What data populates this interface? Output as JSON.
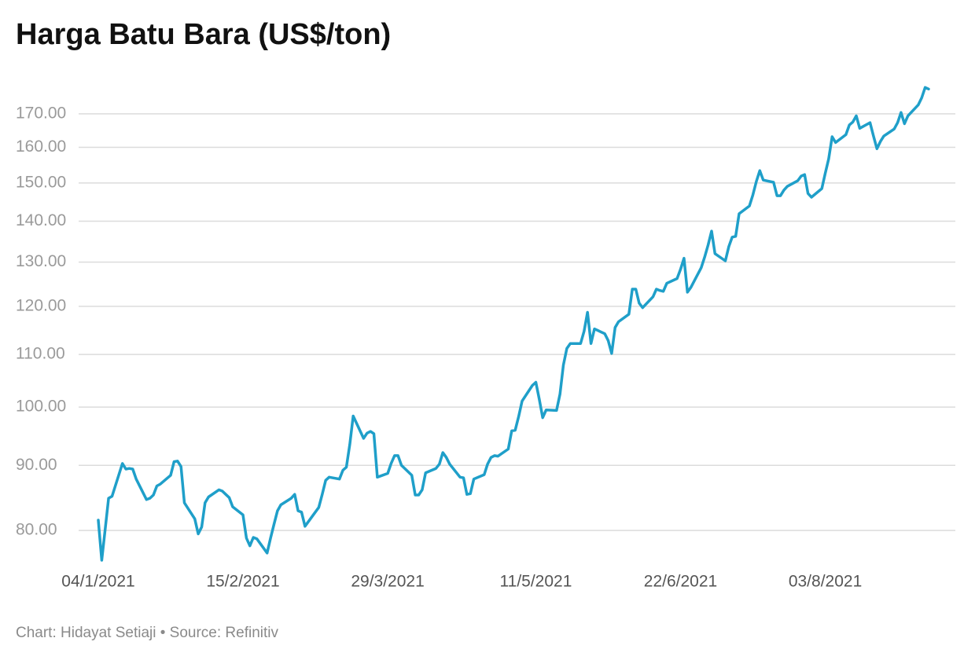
{
  "chart_data": {
    "type": "line",
    "title": "Harga Batu Bara (US$/ton)",
    "footer": "Chart: Hidayat Setiaji • Source: Refinitiv",
    "color": "#1f9fc9",
    "yscale": "log",
    "grid": true,
    "ylim": [
      75,
      185
    ],
    "yticks": [
      {
        "value": 80,
        "label": "80.00"
      },
      {
        "value": 90,
        "label": "90.00"
      },
      {
        "value": 100,
        "label": "100.00"
      },
      {
        "value": 110,
        "label": "110.00"
      },
      {
        "value": 120,
        "label": "120.00"
      },
      {
        "value": 130,
        "label": "130.00"
      },
      {
        "value": 140,
        "label": "140.00"
      },
      {
        "value": 150,
        "label": "150.00"
      },
      {
        "value": 160,
        "label": "160.00"
      },
      {
        "value": 170,
        "label": "170.00"
      }
    ],
    "xlim": [
      "2021-01-04",
      "2021-09-02"
    ],
    "xticks": [
      {
        "value": "2021-01-04",
        "label": "04/1/2021"
      },
      {
        "value": "2021-02-15",
        "label": "15/2/2021"
      },
      {
        "value": "2021-03-29",
        "label": "29/3/2021"
      },
      {
        "value": "2021-05-11",
        "label": "11/5/2021"
      },
      {
        "value": "2021-06-22",
        "label": "22/6/2021"
      },
      {
        "value": "2021-08-03",
        "label": "03/8/2021"
      }
    ],
    "x": [
      "2021-01-04",
      "2021-01-05",
      "2021-01-06",
      "2021-01-07",
      "2021-01-08",
      "2021-01-11",
      "2021-01-12",
      "2021-01-13",
      "2021-01-14",
      "2021-01-15",
      "2021-01-18",
      "2021-01-19",
      "2021-01-20",
      "2021-01-21",
      "2021-01-22",
      "2021-01-25",
      "2021-01-26",
      "2021-01-27",
      "2021-01-28",
      "2021-01-29",
      "2021-02-01",
      "2021-02-02",
      "2021-02-03",
      "2021-02-04",
      "2021-02-05",
      "2021-02-08",
      "2021-02-09",
      "2021-02-10",
      "2021-02-11",
      "2021-02-12",
      "2021-02-15",
      "2021-02-16",
      "2021-02-17",
      "2021-02-18",
      "2021-02-19",
      "2021-02-22",
      "2021-02-23",
      "2021-02-24",
      "2021-02-25",
      "2021-02-26",
      "2021-03-01",
      "2021-03-02",
      "2021-03-03",
      "2021-03-04",
      "2021-03-05",
      "2021-03-08",
      "2021-03-09",
      "2021-03-10",
      "2021-03-11",
      "2021-03-12",
      "2021-03-15",
      "2021-03-16",
      "2021-03-17",
      "2021-03-18",
      "2021-03-19",
      "2021-03-22",
      "2021-03-23",
      "2021-03-24",
      "2021-03-25",
      "2021-03-26",
      "2021-03-29",
      "2021-03-30",
      "2021-03-31",
      "2021-04-01",
      "2021-04-02",
      "2021-04-05",
      "2021-04-06",
      "2021-04-07",
      "2021-04-08",
      "2021-04-09",
      "2021-04-12",
      "2021-04-13",
      "2021-04-14",
      "2021-04-15",
      "2021-04-16",
      "2021-04-19",
      "2021-04-20",
      "2021-04-21",
      "2021-04-22",
      "2021-04-23",
      "2021-04-26",
      "2021-04-27",
      "2021-04-28",
      "2021-04-29",
      "2021-04-30",
      "2021-05-03",
      "2021-05-04",
      "2021-05-05",
      "2021-05-06",
      "2021-05-07",
      "2021-05-10",
      "2021-05-11",
      "2021-05-12",
      "2021-05-13",
      "2021-05-14",
      "2021-05-17",
      "2021-05-18",
      "2021-05-19",
      "2021-05-20",
      "2021-05-21",
      "2021-05-24",
      "2021-05-25",
      "2021-05-26",
      "2021-05-27",
      "2021-05-28",
      "2021-05-31",
      "2021-06-01",
      "2021-06-02",
      "2021-06-03",
      "2021-06-04",
      "2021-06-07",
      "2021-06-08",
      "2021-06-09",
      "2021-06-10",
      "2021-06-11",
      "2021-06-14",
      "2021-06-15",
      "2021-06-16",
      "2021-06-17",
      "2021-06-18",
      "2021-06-21",
      "2021-06-22",
      "2021-06-23",
      "2021-06-24",
      "2021-06-25",
      "2021-06-28",
      "2021-06-29",
      "2021-06-30",
      "2021-07-01",
      "2021-07-02",
      "2021-07-05",
      "2021-07-06",
      "2021-07-07",
      "2021-07-08",
      "2021-07-09",
      "2021-07-12",
      "2021-07-13",
      "2021-07-14",
      "2021-07-15",
      "2021-07-16",
      "2021-07-19",
      "2021-07-20",
      "2021-07-21",
      "2021-07-22",
      "2021-07-23",
      "2021-07-26",
      "2021-07-27",
      "2021-07-28",
      "2021-07-29",
      "2021-07-30",
      "2021-08-02",
      "2021-08-03",
      "2021-08-04",
      "2021-08-05",
      "2021-08-06",
      "2021-08-09",
      "2021-08-10",
      "2021-08-11",
      "2021-08-12",
      "2021-08-13",
      "2021-08-16",
      "2021-08-17",
      "2021-08-18",
      "2021-08-19",
      "2021-08-20",
      "2021-08-23",
      "2021-08-24",
      "2021-08-25",
      "2021-08-26",
      "2021-08-27",
      "2021-08-30",
      "2021-08-31",
      "2021-09-01",
      "2021-09-02"
    ],
    "values": [
      81.5,
      75.8,
      80.2,
      84.8,
      85.1,
      90.3,
      89.4,
      89.5,
      89.4,
      87.8,
      84.6,
      84.8,
      85.3,
      86.7,
      87.0,
      88.4,
      90.6,
      90.7,
      89.8,
      84.1,
      81.7,
      79.5,
      80.5,
      84.1,
      85.0,
      86.1,
      85.9,
      85.4,
      84.9,
      83.5,
      82.3,
      78.9,
      77.8,
      79.0,
      78.8,
      76.8,
      78.9,
      80.9,
      82.9,
      83.8,
      84.8,
      85.4,
      82.9,
      82.7,
      80.6,
      82.7,
      83.4,
      85.4,
      87.6,
      88.1,
      87.8,
      89.2,
      89.7,
      93.5,
      98.4,
      94.5,
      95.4,
      95.7,
      95.3,
      88.1,
      88.7,
      90.3,
      91.6,
      91.6,
      90.0,
      88.4,
      85.3,
      85.3,
      86.1,
      88.8,
      89.5,
      90.2,
      92.1,
      91.3,
      90.2,
      88.1,
      88.0,
      85.4,
      85.5,
      87.8,
      88.5,
      90.2,
      91.3,
      91.6,
      91.5,
      92.7,
      95.8,
      95.9,
      98.3,
      101.1,
      104.0,
      104.6,
      101.4,
      98.1,
      99.5,
      99.4,
      102.4,
      107.9,
      111.2,
      112.2,
      112.2,
      114.7,
      118.7,
      112.2,
      115.2,
      114.2,
      112.8,
      110.2,
      115.5,
      116.7,
      118.3,
      123.8,
      123.8,
      120.7,
      119.7,
      122.1,
      123.8,
      123.5,
      123.3,
      125.1,
      126.2,
      128.3,
      130.9,
      123.1,
      124.2,
      128.7,
      131.2,
      134.1,
      137.5,
      132.0,
      130.3,
      133.7,
      136.0,
      136.2,
      141.9,
      143.9,
      146.8,
      150.4,
      153.4,
      150.8,
      150.2,
      146.6,
      146.6,
      148.1,
      149.1,
      150.6,
      151.9,
      152.3,
      147.2,
      146.2,
      148.5,
      152.6,
      156.7,
      163.1,
      161.4,
      163.7,
      166.6,
      167.5,
      169.4,
      165.6,
      167.3,
      163.3,
      159.6,
      161.7,
      163.3,
      165.4,
      167.3,
      170.4,
      167.0,
      169.4,
      172.8,
      175.0,
      178.3,
      177.8
    ]
  }
}
